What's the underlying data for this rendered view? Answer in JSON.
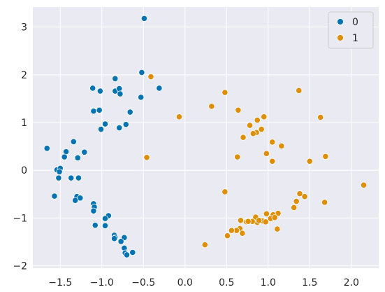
{
  "chart_data": {
    "type": "scatter",
    "xlim": [
      -1.83,
      2.33
    ],
    "ylim": [
      -2.05,
      3.42
    ],
    "x_ticks": [
      -1.5,
      -1.0,
      -0.5,
      0.0,
      0.5,
      1.0,
      1.5,
      2.0
    ],
    "x_tick_labels": [
      "−1.5",
      "−1.0",
      "−0.5",
      "0.0",
      "0.5",
      "1.0",
      "1.5",
      "2.0"
    ],
    "y_ticks": [
      -2,
      -1,
      0,
      1,
      2,
      3
    ],
    "y_tick_labels": [
      "−2",
      "−1",
      "0",
      "1",
      "2",
      "3"
    ],
    "grid": true,
    "legend_position": "top-right",
    "series": [
      {
        "name": "0",
        "color": "#0173b2",
        "points": [
          [
            -0.49,
            3.18
          ],
          [
            -0.52,
            2.05
          ],
          [
            -0.84,
            1.92
          ],
          [
            -0.84,
            1.66
          ],
          [
            -0.79,
            1.71
          ],
          [
            -0.78,
            1.6
          ],
          [
            -1.11,
            1.72
          ],
          [
            -1.02,
            1.66
          ],
          [
            -0.53,
            1.53
          ],
          [
            -0.31,
            1.72
          ],
          [
            -1.1,
            1.24
          ],
          [
            -1.03,
            1.26
          ],
          [
            -0.66,
            1.22
          ],
          [
            -0.96,
            0.97
          ],
          [
            -0.71,
            0.96
          ],
          [
            -0.79,
            0.89
          ],
          [
            -1.01,
            0.86
          ],
          [
            -1.34,
            0.6
          ],
          [
            -1.66,
            0.46
          ],
          [
            -1.43,
            0.39
          ],
          [
            -1.21,
            0.38
          ],
          [
            -1.45,
            0.28
          ],
          [
            -1.29,
            0.26
          ],
          [
            -1.54,
            0.01
          ],
          [
            -1.5,
            0.04
          ],
          [
            -1.51,
            -0.03
          ],
          [
            -1.52,
            -0.16
          ],
          [
            -1.37,
            -0.16
          ],
          [
            -1.28,
            -0.16
          ],
          [
            -1.57,
            -0.54
          ],
          [
            -1.3,
            -0.55
          ],
          [
            -1.26,
            -0.58
          ],
          [
            -1.32,
            -0.63
          ],
          [
            -1.1,
            -0.7
          ],
          [
            -1.09,
            -0.77
          ],
          [
            -1.1,
            -0.85
          ],
          [
            -0.92,
            -0.95
          ],
          [
            -0.96,
            -1.01
          ],
          [
            -1.08,
            -1.15
          ],
          [
            -0.96,
            -1.16
          ],
          [
            -0.85,
            -1.36
          ],
          [
            -0.84,
            -1.41
          ],
          [
            -0.85,
            -1.43
          ],
          [
            -0.73,
            -1.41
          ],
          [
            -0.77,
            -1.49
          ],
          [
            -0.73,
            -1.63
          ],
          [
            -0.72,
            -1.73
          ],
          [
            -0.63,
            -1.72
          ],
          [
            -0.7,
            -1.77
          ]
        ]
      },
      {
        "name": "1",
        "color": "#de8f05",
        "points": [
          [
            -0.41,
            1.96
          ],
          [
            1.37,
            1.67
          ],
          [
            0.48,
            1.63
          ],
          [
            0.32,
            1.34
          ],
          [
            0.64,
            1.26
          ],
          [
            -0.07,
            1.12
          ],
          [
            1.63,
            1.11
          ],
          [
            0.95,
            1.12
          ],
          [
            0.87,
            1.05
          ],
          [
            0.78,
            0.94
          ],
          [
            0.92,
            0.86
          ],
          [
            0.86,
            0.79
          ],
          [
            0.82,
            0.77
          ],
          [
            0.7,
            0.69
          ],
          [
            1.05,
            0.59
          ],
          [
            1.16,
            0.51
          ],
          [
            0.98,
            0.35
          ],
          [
            0.63,
            0.28
          ],
          [
            -0.46,
            0.27
          ],
          [
            1.69,
            0.29
          ],
          [
            1.05,
            0.19
          ],
          [
            1.5,
            0.19
          ],
          [
            2.15,
            -0.31
          ],
          [
            0.48,
            -0.45
          ],
          [
            1.38,
            -0.49
          ],
          [
            1.44,
            -0.55
          ],
          [
            1.34,
            -0.65
          ],
          [
            1.68,
            -0.67
          ],
          [
            1.31,
            -0.78
          ],
          [
            1.12,
            -0.9
          ],
          [
            0.98,
            -0.91
          ],
          [
            1.06,
            -0.93
          ],
          [
            0.85,
            -0.98
          ],
          [
            1.03,
            -1.01
          ],
          [
            1.08,
            -0.99
          ],
          [
            0.93,
            -1.06
          ],
          [
            0.87,
            -1.09
          ],
          [
            0.97,
            -1.08
          ],
          [
            0.81,
            -1.07
          ],
          [
            0.74,
            -1.08
          ],
          [
            0.67,
            -1.05
          ],
          [
            0.66,
            -1.22
          ],
          [
            0.62,
            -1.26
          ],
          [
            0.56,
            -1.26
          ],
          [
            0.69,
            -1.32
          ],
          [
            1.11,
            -1.23
          ],
          [
            0.51,
            -1.37
          ],
          [
            0.24,
            -1.56
          ],
          [
            0.76,
            -1.07
          ],
          [
            0.89,
            -1.05
          ]
        ]
      }
    ]
  }
}
